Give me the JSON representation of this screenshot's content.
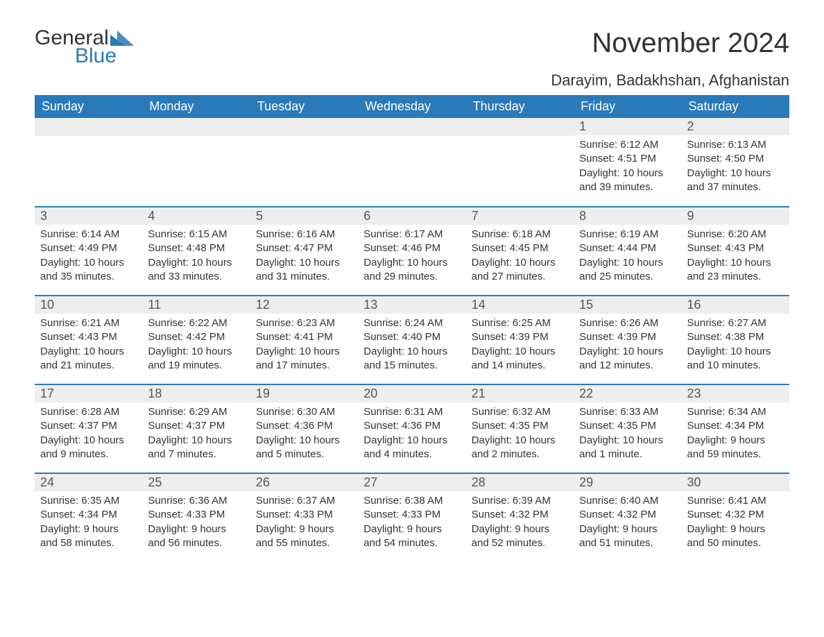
{
  "logo": {
    "text1": "General",
    "text2": "Blue"
  },
  "title": "November 2024",
  "location": "Darayim, Badakhshan, Afghanistan",
  "colors": {
    "header_bg": "#2a7ab9",
    "header_text": "#ffffff",
    "daynum_bg": "#eeeeee",
    "row_border": "#2a7ab9",
    "body_text": "#333333",
    "logo_blue": "#2a7ab9",
    "page_bg": "#ffffff"
  },
  "typography": {
    "title_fontsize": 40,
    "location_fontsize": 22,
    "header_fontsize": 18,
    "daynum_fontsize": 18,
    "body_fontsize": 15
  },
  "day_headers": [
    "Sunday",
    "Monday",
    "Tuesday",
    "Wednesday",
    "Thursday",
    "Friday",
    "Saturday"
  ],
  "weeks": [
    [
      null,
      null,
      null,
      null,
      null,
      {
        "n": "1",
        "sunrise": "6:12 AM",
        "sunset": "4:51 PM",
        "daylight": "10 hours and 39 minutes."
      },
      {
        "n": "2",
        "sunrise": "6:13 AM",
        "sunset": "4:50 PM",
        "daylight": "10 hours and 37 minutes."
      }
    ],
    [
      {
        "n": "3",
        "sunrise": "6:14 AM",
        "sunset": "4:49 PM",
        "daylight": "10 hours and 35 minutes."
      },
      {
        "n": "4",
        "sunrise": "6:15 AM",
        "sunset": "4:48 PM",
        "daylight": "10 hours and 33 minutes."
      },
      {
        "n": "5",
        "sunrise": "6:16 AM",
        "sunset": "4:47 PM",
        "daylight": "10 hours and 31 minutes."
      },
      {
        "n": "6",
        "sunrise": "6:17 AM",
        "sunset": "4:46 PM",
        "daylight": "10 hours and 29 minutes."
      },
      {
        "n": "7",
        "sunrise": "6:18 AM",
        "sunset": "4:45 PM",
        "daylight": "10 hours and 27 minutes."
      },
      {
        "n": "8",
        "sunrise": "6:19 AM",
        "sunset": "4:44 PM",
        "daylight": "10 hours and 25 minutes."
      },
      {
        "n": "9",
        "sunrise": "6:20 AM",
        "sunset": "4:43 PM",
        "daylight": "10 hours and 23 minutes."
      }
    ],
    [
      {
        "n": "10",
        "sunrise": "6:21 AM",
        "sunset": "4:43 PM",
        "daylight": "10 hours and 21 minutes."
      },
      {
        "n": "11",
        "sunrise": "6:22 AM",
        "sunset": "4:42 PM",
        "daylight": "10 hours and 19 minutes."
      },
      {
        "n": "12",
        "sunrise": "6:23 AM",
        "sunset": "4:41 PM",
        "daylight": "10 hours and 17 minutes."
      },
      {
        "n": "13",
        "sunrise": "6:24 AM",
        "sunset": "4:40 PM",
        "daylight": "10 hours and 15 minutes."
      },
      {
        "n": "14",
        "sunrise": "6:25 AM",
        "sunset": "4:39 PM",
        "daylight": "10 hours and 14 minutes."
      },
      {
        "n": "15",
        "sunrise": "6:26 AM",
        "sunset": "4:39 PM",
        "daylight": "10 hours and 12 minutes."
      },
      {
        "n": "16",
        "sunrise": "6:27 AM",
        "sunset": "4:38 PM",
        "daylight": "10 hours and 10 minutes."
      }
    ],
    [
      {
        "n": "17",
        "sunrise": "6:28 AM",
        "sunset": "4:37 PM",
        "daylight": "10 hours and 9 minutes."
      },
      {
        "n": "18",
        "sunrise": "6:29 AM",
        "sunset": "4:37 PM",
        "daylight": "10 hours and 7 minutes."
      },
      {
        "n": "19",
        "sunrise": "6:30 AM",
        "sunset": "4:36 PM",
        "daylight": "10 hours and 5 minutes."
      },
      {
        "n": "20",
        "sunrise": "6:31 AM",
        "sunset": "4:36 PM",
        "daylight": "10 hours and 4 minutes."
      },
      {
        "n": "21",
        "sunrise": "6:32 AM",
        "sunset": "4:35 PM",
        "daylight": "10 hours and 2 minutes."
      },
      {
        "n": "22",
        "sunrise": "6:33 AM",
        "sunset": "4:35 PM",
        "daylight": "10 hours and 1 minute."
      },
      {
        "n": "23",
        "sunrise": "6:34 AM",
        "sunset": "4:34 PM",
        "daylight": "9 hours and 59 minutes."
      }
    ],
    [
      {
        "n": "24",
        "sunrise": "6:35 AM",
        "sunset": "4:34 PM",
        "daylight": "9 hours and 58 minutes."
      },
      {
        "n": "25",
        "sunrise": "6:36 AM",
        "sunset": "4:33 PM",
        "daylight": "9 hours and 56 minutes."
      },
      {
        "n": "26",
        "sunrise": "6:37 AM",
        "sunset": "4:33 PM",
        "daylight": "9 hours and 55 minutes."
      },
      {
        "n": "27",
        "sunrise": "6:38 AM",
        "sunset": "4:33 PM",
        "daylight": "9 hours and 54 minutes."
      },
      {
        "n": "28",
        "sunrise": "6:39 AM",
        "sunset": "4:32 PM",
        "daylight": "9 hours and 52 minutes."
      },
      {
        "n": "29",
        "sunrise": "6:40 AM",
        "sunset": "4:32 PM",
        "daylight": "9 hours and 51 minutes."
      },
      {
        "n": "30",
        "sunrise": "6:41 AM",
        "sunset": "4:32 PM",
        "daylight": "9 hours and 50 minutes."
      }
    ]
  ],
  "labels": {
    "sunrise": "Sunrise: ",
    "sunset": "Sunset: ",
    "daylight": "Daylight: "
  }
}
